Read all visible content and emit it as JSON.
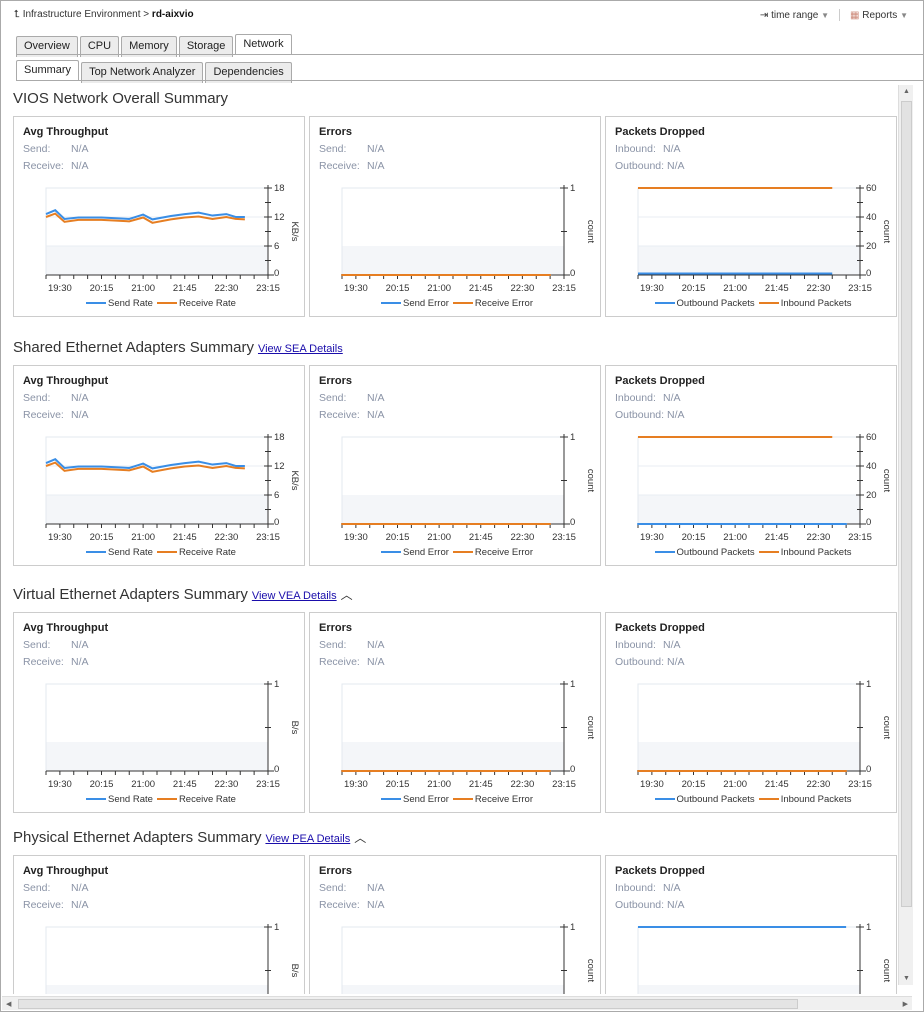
{
  "breadcrumb": {
    "root": "Infrastructure Environment",
    "separator": ">",
    "current": "rd-aixvio"
  },
  "toolbar": {
    "time_range": "time range",
    "reports": "Reports"
  },
  "tabs": [
    "Overview",
    "CPU",
    "Memory",
    "Storage",
    "Network"
  ],
  "active_tab": "Network",
  "subtabs": [
    "Summary",
    "Top Network Analyzer",
    "Dependencies"
  ],
  "active_subtab": "Summary",
  "colors": {
    "send": "#3a8ee6",
    "receive": "#e67e22",
    "band": "#f4f6f9"
  },
  "x_ticks": [
    "19:30",
    "20:15",
    "21:00",
    "21:45",
    "22:30",
    "23:15"
  ],
  "sections": [
    {
      "title": "VIOS Network Overall Summary",
      "link": "",
      "collapse": false,
      "panels": [
        {
          "title": "Avg Throughput",
          "k1": "Send:",
          "v1": "N/A",
          "k2": "Receive:",
          "v2": "N/A",
          "chart": {
            "ylabel": "KB/s",
            "yticks": [
              0,
              6,
              12,
              18
            ],
            "legend": [
              "Send Rate",
              "Receive Rate"
            ],
            "series": [
              {
                "name": "Send Rate",
                "points": [
                  [
                    "19:15",
                    12.6
                  ],
                  [
                    "19:25",
                    13.4
                  ],
                  [
                    "19:35",
                    11.6
                  ],
                  [
                    "19:50",
                    11.9
                  ],
                  [
                    "20:15",
                    11.9
                  ],
                  [
                    "20:45",
                    11.6
                  ],
                  [
                    "21:00",
                    12.5
                  ],
                  [
                    "21:10",
                    11.5
                  ],
                  [
                    "21:30",
                    12.2
                  ],
                  [
                    "21:45",
                    12.6
                  ],
                  [
                    "22:00",
                    12.9
                  ],
                  [
                    "22:15",
                    12.3
                  ],
                  [
                    "22:30",
                    12.6
                  ],
                  [
                    "22:40",
                    12.0
                  ],
                  [
                    "22:50",
                    12.0
                  ]
                ]
              },
              {
                "name": "Receive Rate",
                "points": [
                  [
                    "19:15",
                    12.0
                  ],
                  [
                    "19:25",
                    12.7
                  ],
                  [
                    "19:35",
                    11.0
                  ],
                  [
                    "19:50",
                    11.4
                  ],
                  [
                    "20:15",
                    11.4
                  ],
                  [
                    "20:45",
                    11.1
                  ],
                  [
                    "21:00",
                    11.9
                  ],
                  [
                    "21:10",
                    10.8
                  ],
                  [
                    "21:30",
                    11.5
                  ],
                  [
                    "21:45",
                    11.9
                  ],
                  [
                    "22:00",
                    12.1
                  ],
                  [
                    "22:15",
                    11.6
                  ],
                  [
                    "22:30",
                    12.0
                  ],
                  [
                    "22:40",
                    11.6
                  ],
                  [
                    "22:50",
                    11.5
                  ]
                ]
              }
            ]
          }
        },
        {
          "title": "Errors",
          "k1": "Send:",
          "v1": "N/A",
          "k2": "Receive:",
          "v2": "N/A",
          "chart": {
            "ylabel": "count",
            "yticks": [
              0,
              1
            ],
            "legend": [
              "Send Error",
              "Receive Error"
            ],
            "series": [
              {
                "name": "Send Error",
                "points": [
                  [
                    "19:15",
                    0
                  ],
                  [
                    "23:00",
                    0
                  ]
                ]
              },
              {
                "name": "Receive Error",
                "points": [
                  [
                    "19:15",
                    0
                  ],
                  [
                    "23:00",
                    0
                  ]
                ]
              }
            ]
          }
        },
        {
          "title": "Packets Dropped",
          "k1": "Inbound:",
          "v1": "N/A",
          "k2": "Outbound:",
          "v2": "N/A",
          "chart": {
            "ylabel": "count",
            "yticks": [
              0,
              20,
              40,
              60
            ],
            "legend": [
              "Outbound Packets",
              "Inbound Packets"
            ],
            "series": [
              {
                "name": "Outbound Packets",
                "points": [
                  [
                    "19:15",
                    1
                  ],
                  [
                    "22:45",
                    1
                  ]
                ]
              },
              {
                "name": "Inbound Packets",
                "points": [
                  [
                    "19:15",
                    60
                  ],
                  [
                    "22:45",
                    60
                  ]
                ]
              }
            ]
          }
        }
      ]
    },
    {
      "title": "Shared Ethernet Adapters Summary",
      "link": "View SEA Details",
      "collapse": false,
      "panels": [
        {
          "title": "Avg Throughput",
          "k1": "Send:",
          "v1": "N/A",
          "k2": "Receive:",
          "v2": "N/A",
          "chart": {
            "ylabel": "KB/s",
            "yticks": [
              0,
              6,
              12,
              18
            ],
            "legend": [
              "Send Rate",
              "Receive Rate"
            ],
            "series": [
              {
                "name": "Send Rate",
                "points": [
                  [
                    "19:15",
                    12.6
                  ],
                  [
                    "19:25",
                    13.4
                  ],
                  [
                    "19:35",
                    11.6
                  ],
                  [
                    "19:50",
                    11.9
                  ],
                  [
                    "20:15",
                    11.9
                  ],
                  [
                    "20:45",
                    11.6
                  ],
                  [
                    "21:00",
                    12.5
                  ],
                  [
                    "21:10",
                    11.5
                  ],
                  [
                    "21:30",
                    12.2
                  ],
                  [
                    "21:45",
                    12.6
                  ],
                  [
                    "22:00",
                    12.9
                  ],
                  [
                    "22:15",
                    12.3
                  ],
                  [
                    "22:30",
                    12.6
                  ],
                  [
                    "22:40",
                    12.0
                  ],
                  [
                    "22:50",
                    12.0
                  ]
                ]
              },
              {
                "name": "Receive Rate",
                "points": [
                  [
                    "19:15",
                    12.0
                  ],
                  [
                    "19:25",
                    12.7
                  ],
                  [
                    "19:35",
                    11.0
                  ],
                  [
                    "19:50",
                    11.4
                  ],
                  [
                    "20:15",
                    11.4
                  ],
                  [
                    "20:45",
                    11.1
                  ],
                  [
                    "21:00",
                    11.9
                  ],
                  [
                    "21:10",
                    10.8
                  ],
                  [
                    "21:30",
                    11.5
                  ],
                  [
                    "21:45",
                    11.9
                  ],
                  [
                    "22:00",
                    12.1
                  ],
                  [
                    "22:15",
                    11.6
                  ],
                  [
                    "22:30",
                    12.0
                  ],
                  [
                    "22:40",
                    11.6
                  ],
                  [
                    "22:50",
                    11.5
                  ]
                ]
              }
            ]
          }
        },
        {
          "title": "Errors",
          "k1": "Send:",
          "v1": "N/A",
          "k2": "Receive:",
          "v2": "N/A",
          "chart": {
            "ylabel": "count",
            "yticks": [
              0,
              1
            ],
            "legend": [
              "Send Error",
              "Receive Error"
            ],
            "series": [
              {
                "name": "Send Error",
                "points": [
                  [
                    "19:15",
                    0
                  ],
                  [
                    "23:00",
                    0
                  ]
                ]
              },
              {
                "name": "Receive Error",
                "points": [
                  [
                    "19:15",
                    0
                  ],
                  [
                    "23:00",
                    0
                  ]
                ]
              }
            ]
          }
        },
        {
          "title": "Packets Dropped",
          "k1": "Inbound:",
          "v1": "N/A",
          "k2": "Outbound:",
          "v2": "N/A",
          "chart": {
            "ylabel": "count",
            "yticks": [
              0,
              20,
              40,
              60
            ],
            "legend": [
              "Outbound Packets",
              "Inbound Packets"
            ],
            "series": [
              {
                "name": "Outbound Packets",
                "points": [
                  [
                    "19:15",
                    0
                  ],
                  [
                    "23:00",
                    0
                  ]
                ]
              },
              {
                "name": "Inbound Packets",
                "points": [
                  [
                    "19:15",
                    60
                  ],
                  [
                    "22:45",
                    60
                  ]
                ]
              }
            ]
          }
        }
      ]
    },
    {
      "title": "Virtual Ethernet Adapters Summary",
      "link": "View VEA Details",
      "collapse": true,
      "panels": [
        {
          "title": "Avg Throughput",
          "k1": "Send:",
          "v1": "N/A",
          "k2": "Receive:",
          "v2": "N/A",
          "chart": {
            "ylabel": "B/s",
            "yticks": [
              0,
              1
            ],
            "legend": [
              "Send Rate",
              "Receive Rate"
            ],
            "series": []
          }
        },
        {
          "title": "Errors",
          "k1": "Send:",
          "v1": "N/A",
          "k2": "Receive:",
          "v2": "N/A",
          "chart": {
            "ylabel": "count",
            "yticks": [
              0,
              1
            ],
            "legend": [
              "Send Error",
              "Receive Error"
            ],
            "series": [
              {
                "name": "Send Error",
                "points": [
                  [
                    "19:15",
                    0
                  ],
                  [
                    "23:00",
                    0
                  ]
                ]
              },
              {
                "name": "Receive Error",
                "points": [
                  [
                    "19:15",
                    0
                  ],
                  [
                    "23:00",
                    0
                  ]
                ]
              }
            ]
          }
        },
        {
          "title": "Packets Dropped",
          "k1": "Inbound:",
          "v1": "N/A",
          "k2": "Outbound:",
          "v2": "N/A",
          "chart": {
            "ylabel": "count",
            "yticks": [
              0,
              1
            ],
            "legend": [
              "Outbound Packets",
              "Inbound Packets"
            ],
            "series": [
              {
                "name": "Outbound Packets",
                "points": [
                  [
                    "19:15",
                    0
                  ],
                  [
                    "23:00",
                    0
                  ]
                ]
              },
              {
                "name": "Inbound Packets",
                "points": [
                  [
                    "19:15",
                    0
                  ],
                  [
                    "23:00",
                    0
                  ]
                ]
              }
            ]
          }
        }
      ]
    },
    {
      "title": "Physical Ethernet Adapters Summary",
      "link": "View PEA Details",
      "collapse": true,
      "panels": [
        {
          "title": "Avg Throughput",
          "k1": "Send:",
          "v1": "N/A",
          "k2": "Receive:",
          "v2": "N/A",
          "chart": {
            "ylabel": "B/s",
            "yticks": [
              0,
              1
            ],
            "legend": [
              "Send Rate",
              "Receive Rate"
            ],
            "series": []
          }
        },
        {
          "title": "Errors",
          "k1": "Send:",
          "v1": "N/A",
          "k2": "Receive:",
          "v2": "N/A",
          "chart": {
            "ylabel": "count",
            "yticks": [
              0,
              1
            ],
            "legend": [
              "Send Error",
              "Receive Error"
            ],
            "series": []
          }
        },
        {
          "title": "Packets Dropped",
          "k1": "Inbound:",
          "v1": "N/A",
          "k2": "Outbound:",
          "v2": "N/A",
          "chart": {
            "ylabel": "count",
            "yticks": [
              0,
              1
            ],
            "legend": [
              "Outbound Packets",
              "Inbound Packets"
            ],
            "series": [
              {
                "name": "Outbound Packets",
                "points": [
                  [
                    "19:15",
                    1
                  ],
                  [
                    "23:00",
                    1
                  ]
                ]
              }
            ]
          }
        }
      ]
    }
  ]
}
